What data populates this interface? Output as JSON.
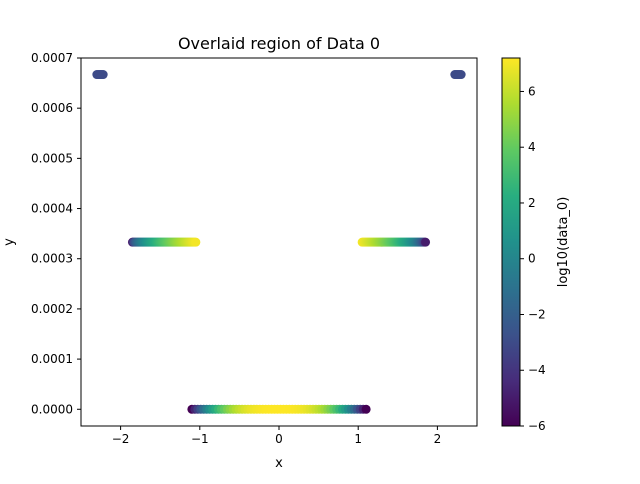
{
  "chart_data": {
    "type": "scatter",
    "title": "Overlaid region of Data 0",
    "xlabel": "x",
    "ylabel": "y",
    "xlim": [
      -2.5,
      2.5
    ],
    "ylim": [
      -3.333e-05,
      0.0007
    ],
    "xticks": [
      -2,
      -1,
      0,
      1,
      2
    ],
    "xtick_labels": [
      "−2",
      "−1",
      "0",
      "1",
      "2"
    ],
    "yticks": [
      0,
      0.0001,
      0.0002,
      0.0003,
      0.0004,
      0.0005,
      0.0006,
      0.0007
    ],
    "ytick_labels": [
      "0.0000",
      "0.0001",
      "0.0002",
      "0.0003",
      "0.0004",
      "0.0005",
      "0.0006",
      "0.0007"
    ],
    "grid": false,
    "colormap": "viridis",
    "colorbar": {
      "label": "log10(data_0)",
      "range": [
        -6,
        7.2
      ],
      "ticks": [
        -6,
        -4,
        -2,
        0,
        2,
        4,
        6
      ],
      "tick_labels": [
        "−6",
        "−4",
        "−2",
        "0",
        "2",
        "4",
        "6"
      ]
    },
    "series": [
      {
        "y": 0,
        "x_start": -1.1,
        "x_end": 1.1,
        "profile": "center_peak",
        "c_edge": -6,
        "c_peak": 7.2
      },
      {
        "y": 0.000333,
        "x_start": -1.85,
        "x_end": -1.05,
        "profile": "rising",
        "c_edge": -5,
        "c_peak": 7
      },
      {
        "y": 0.000333,
        "x_start": 1.05,
        "x_end": 1.85,
        "profile": "falling",
        "c_edge": -5,
        "c_peak": 7
      },
      {
        "y": 0.000667,
        "x_start": -2.3,
        "x_end": -2.22,
        "profile": "flat",
        "c_edge": -3,
        "c_peak": -3
      },
      {
        "y": 0.000667,
        "x_start": 2.22,
        "x_end": 2.3,
        "profile": "flat",
        "c_edge": -3,
        "c_peak": -3
      }
    ]
  }
}
